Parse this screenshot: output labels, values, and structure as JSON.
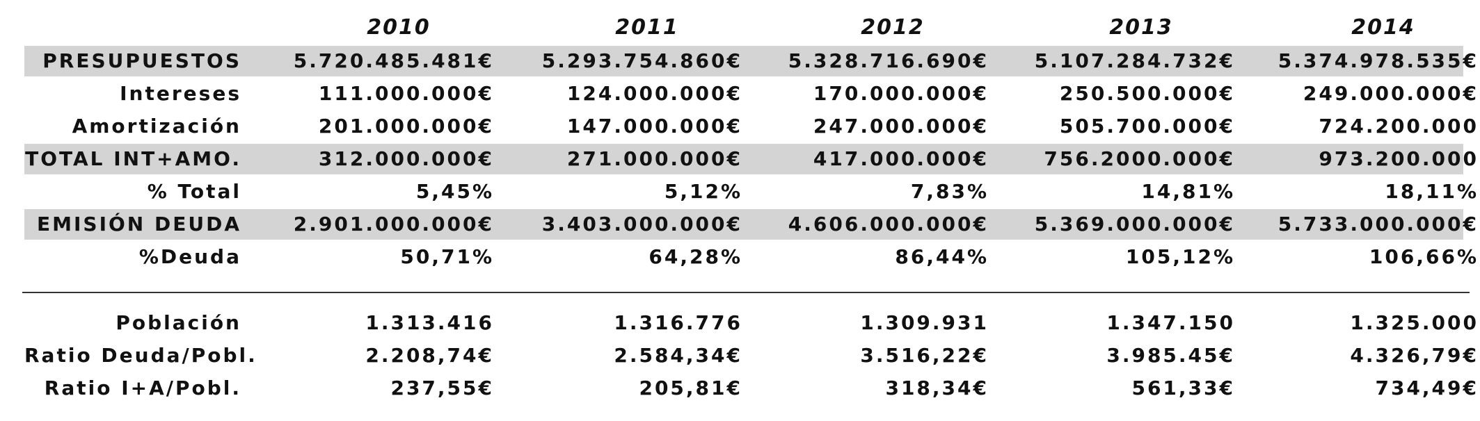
{
  "years": [
    "2010",
    "2011",
    "2012",
    "2013",
    "2014"
  ],
  "rows": [
    {
      "label": "PRESUPUESTOS",
      "values": [
        "5.720.485.481€",
        "5.293.754.860€",
        "5.328.716.690€",
        "5.107.284.732€",
        "5.374.978.535€"
      ]
    },
    {
      "label": "Intereses",
      "values": [
        "111.000.000€",
        "124.000.000€",
        "170.000.000€",
        "250.500.000€",
        "249.000.000€"
      ]
    },
    {
      "label": "Amortización",
      "values": [
        "201.000.000€",
        "147.000.000€",
        "247.000.000€",
        "505.700.000€",
        "724.200.000"
      ]
    },
    {
      "label": "TOTAL INT+AMO.",
      "values": [
        "312.000.000€",
        "271.000.000€",
        "417.000.000€",
        "756.2000.000€",
        "973.200.000"
      ]
    },
    {
      "label": "% Total",
      "values": [
        "5,45%",
        "5,12%",
        "7,83%",
        "14,81%",
        "18,11%"
      ]
    },
    {
      "label": "EMISIÓN DEUDA",
      "values": [
        "2.901.000.000€",
        "3.403.000.000€",
        "4.606.000.000€",
        "5.369.000.000€",
        "5.733.000.000€"
      ]
    },
    {
      "label": "%Deuda",
      "values": [
        "50,71%",
        "64,28%",
        "86,44%",
        "105,12%",
        "106,66%"
      ]
    },
    {
      "label": "Población",
      "values": [
        "1.313.416",
        "1.316.776",
        "1.309.931",
        "1.347.150",
        "1.325.000"
      ]
    },
    {
      "label": "Ratio Deuda/Pobl.",
      "values": [
        "2.208,74€",
        "2.584,34€",
        "3.516,22€",
        "3.985.45€",
        "4.326,79€"
      ]
    },
    {
      "label": "Ratio I+A/Pobl.",
      "values": [
        "237,55€",
        "205,81€",
        "318,34€",
        "561,33€",
        "734,49€"
      ]
    }
  ]
}
